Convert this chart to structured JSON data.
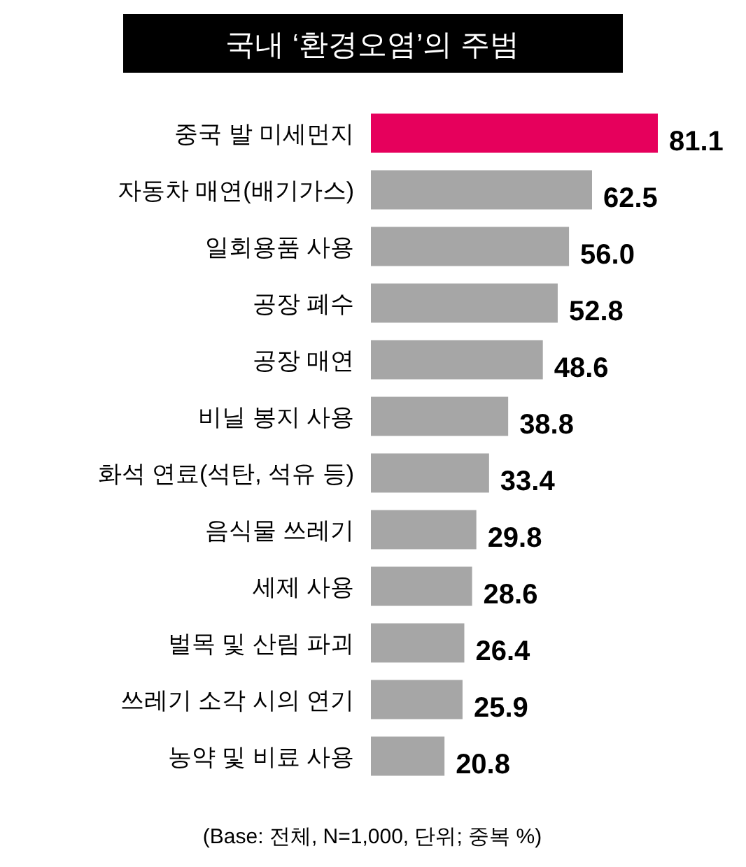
{
  "chart_data": {
    "type": "bar",
    "orientation": "horizontal",
    "title": "국내 ‘환경오염’의 주범",
    "categories": [
      "중국 발 미세먼지",
      "자동차 매연(배기가스)",
      "일회용품 사용",
      "공장 폐수",
      "공장 매연",
      "비닐 봉지 사용",
      "화석 연료(석탄, 석유 등)",
      "음식물 쓰레기",
      "세제 사용",
      "벌목 및 산림 파괴",
      "쓰레기 소각 시의 연기",
      "농약 및 비료 사용"
    ],
    "values": [
      81.1,
      62.5,
      56.0,
      52.8,
      48.6,
      38.8,
      33.4,
      29.8,
      28.6,
      26.4,
      25.9,
      20.8
    ],
    "value_labels": [
      "81.1",
      "62.5",
      "56.0",
      "52.8",
      "48.6",
      "38.8",
      "33.4",
      "29.8",
      "28.6",
      "26.4",
      "25.9",
      "20.8"
    ],
    "colors": [
      "#e6005c",
      "#a6a6a6",
      "#a6a6a6",
      "#a6a6a6",
      "#a6a6a6",
      "#a6a6a6",
      "#a6a6a6",
      "#a6a6a6",
      "#a6a6a6",
      "#a6a6a6",
      "#a6a6a6",
      "#a6a6a6"
    ],
    "annotations": [
      "(Base: 전체, N=1,000, 단위; 중복 %)"
    ]
  }
}
